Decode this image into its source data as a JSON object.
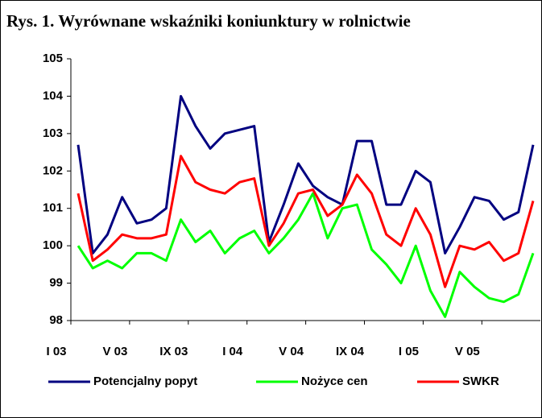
{
  "chart_data": {
    "type": "line",
    "title": "Rys. 1. Wyrównane wskaźniki koniunktury w rolnictwie",
    "categories": [
      "I 03",
      null,
      null,
      null,
      "V 03",
      null,
      null,
      null,
      "IX 03",
      null,
      null,
      null,
      "I 04",
      null,
      null,
      null,
      "V 04",
      null,
      null,
      null,
      "IX 04",
      null,
      null,
      null,
      "I 05",
      null,
      null,
      null,
      "V 05",
      null,
      null,
      null
    ],
    "series": [
      {
        "name": "Potencjalny popyt",
        "color": "#000080",
        "values": [
          102.7,
          99.8,
          100.3,
          101.3,
          100.6,
          100.7,
          101.0,
          104.0,
          103.2,
          102.6,
          103.0,
          103.1,
          103.2,
          100.1,
          101.1,
          102.2,
          101.6,
          101.3,
          101.1,
          102.8,
          102.8,
          101.1,
          101.1,
          102.0,
          101.7,
          99.8,
          100.5,
          101.3,
          101.2,
          100.7,
          100.9,
          102.7
        ]
      },
      {
        "name": "Nożyce cen",
        "color": "#00ff00",
        "values": [
          100.0,
          99.4,
          99.6,
          99.4,
          99.8,
          99.8,
          99.6,
          100.7,
          100.1,
          100.4,
          99.8,
          100.2,
          100.4,
          99.8,
          100.2,
          100.7,
          101.4,
          100.2,
          101.0,
          101.1,
          99.9,
          99.5,
          99.0,
          100.0,
          98.8,
          98.1,
          99.3,
          98.9,
          98.6,
          98.5,
          98.7,
          99.8
        ]
      },
      {
        "name": "SWKR",
        "color": "#ff0000",
        "values": [
          101.4,
          99.6,
          99.9,
          100.3,
          100.2,
          100.2,
          100.3,
          102.4,
          101.7,
          101.5,
          101.4,
          101.7,
          101.8,
          100.0,
          100.6,
          101.4,
          101.5,
          100.8,
          101.1,
          101.9,
          101.4,
          100.3,
          100.0,
          101.0,
          100.3,
          98.9,
          100.0,
          99.9,
          100.1,
          99.6,
          99.8,
          101.2
        ]
      }
    ],
    "ylim": [
      98,
      105
    ],
    "yticks": [
      98,
      99,
      100,
      101,
      102,
      103,
      104,
      105
    ]
  }
}
